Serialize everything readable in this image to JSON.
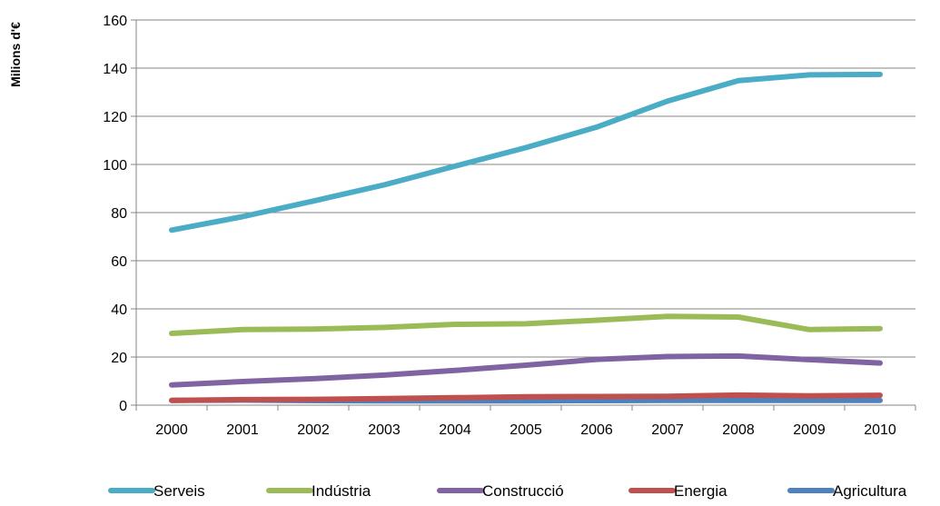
{
  "chart_data": {
    "type": "line",
    "title": "",
    "xlabel": "",
    "ylabel": "Milions d'€",
    "ylim": [
      0,
      160
    ],
    "yticks": [
      0,
      20,
      40,
      60,
      80,
      100,
      120,
      140,
      160
    ],
    "grid": true,
    "legend_position": "bottom",
    "categories": [
      "2000",
      "2001",
      "2002",
      "2003",
      "2004",
      "2005",
      "2006",
      "2007",
      "2008",
      "2009",
      "2010"
    ],
    "series": [
      {
        "name": "Serveis",
        "color": "#4bacc6",
        "values": [
          72.7,
          78.3,
          84.8,
          91.5,
          99.3,
          107.0,
          115.5,
          126.3,
          134.8,
          137.2,
          137.4
        ]
      },
      {
        "name": "Indústria",
        "color": "#9bbb59",
        "values": [
          29.8,
          31.4,
          31.6,
          32.3,
          33.6,
          33.8,
          35.3,
          36.9,
          36.6,
          31.4,
          31.8
        ]
      },
      {
        "name": "Construcció",
        "color": "#8064a2",
        "values": [
          8.4,
          9.8,
          11.0,
          12.5,
          14.4,
          16.6,
          19.0,
          20.2,
          20.4,
          18.9,
          17.5
        ]
      },
      {
        "name": "Energia",
        "color": "#c0504d",
        "values": [
          2.0,
          2.3,
          2.4,
          2.7,
          3.1,
          3.5,
          3.6,
          3.7,
          4.2,
          3.9,
          4.1
        ]
      },
      {
        "name": "Agricultura",
        "color": "#4f81bd",
        "values": [
          2.0,
          2.1,
          1.9,
          1.8,
          1.8,
          1.8,
          1.9,
          2.0,
          2.0,
          2.0,
          2.0
        ]
      }
    ]
  }
}
